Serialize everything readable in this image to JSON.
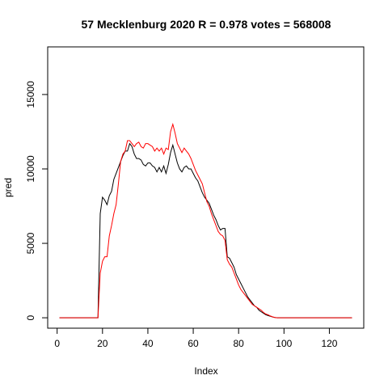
{
  "chart_data": {
    "type": "line",
    "title": "57 Mecklenburg 2020 R = 0.978 votes = 568008",
    "xlabel": "Index",
    "ylabel": "pred",
    "xlim": [
      1,
      130
    ],
    "ylim": [
      0,
      17500
    ],
    "x_ticks": [
      0,
      20,
      40,
      60,
      80,
      100,
      120
    ],
    "y_ticks": [
      0,
      5000,
      10000,
      15000
    ],
    "grid": false,
    "legend": "none",
    "series": [
      {
        "color": "#000000",
        "values": [
          0,
          0,
          0,
          0,
          0,
          0,
          0,
          0,
          0,
          0,
          0,
          0,
          0,
          0,
          0,
          0,
          0,
          0,
          7000,
          8100,
          7900,
          7600,
          8200,
          8500,
          9300,
          9700,
          10100,
          10500,
          10900,
          11200,
          11200,
          11700,
          11500,
          11000,
          10700,
          10700,
          10600,
          10300,
          10200,
          10400,
          10400,
          10200,
          10100,
          9800,
          10100,
          9800,
          10200,
          9700,
          10300,
          11100,
          11600,
          11000,
          10400,
          10000,
          9800,
          10100,
          10200,
          10000,
          10000,
          9700,
          9400,
          9200,
          8800,
          8400,
          8100,
          7900,
          7700,
          7300,
          6900,
          6600,
          6200,
          5900,
          6000,
          6000,
          4100,
          4000,
          3700,
          3400,
          2900,
          2600,
          2300,
          2000,
          1700,
          1400,
          1200,
          1000,
          800,
          700,
          500,
          400,
          300,
          200,
          150,
          100,
          50,
          20,
          0,
          0,
          0,
          0,
          0,
          0,
          0,
          0,
          0,
          0,
          0,
          0,
          0,
          0,
          0,
          0,
          0,
          0,
          0,
          0,
          0,
          0,
          0,
          0,
          0,
          0,
          0,
          0,
          0,
          0,
          0,
          0,
          0,
          0
        ]
      },
      {
        "color": "#ff0000",
        "values": [
          0,
          0,
          0,
          0,
          0,
          0,
          0,
          0,
          0,
          0,
          0,
          0,
          0,
          0,
          0,
          0,
          0,
          0,
          3000,
          3800,
          4100,
          4100,
          5500,
          6200,
          7000,
          7600,
          9000,
          10500,
          11000,
          11200,
          11900,
          11900,
          11700,
          11500,
          11700,
          11800,
          11500,
          11400,
          11700,
          11700,
          11600,
          11500,
          11200,
          11400,
          11200,
          11400,
          11000,
          11400,
          11300,
          12500,
          13000,
          12400,
          11700,
          11400,
          11100,
          11400,
          11200,
          11000,
          10700,
          10300,
          9900,
          9600,
          9300,
          9000,
          8400,
          7800,
          7500,
          7000,
          6600,
          6200,
          5800,
          5600,
          5500,
          5200,
          3900,
          3600,
          3400,
          3000,
          2600,
          2200,
          1900,
          1700,
          1500,
          1300,
          1100,
          900,
          800,
          700,
          600,
          500,
          350,
          250,
          200,
          120,
          60,
          20,
          0,
          0,
          0,
          0,
          0,
          0,
          0,
          0,
          0,
          0,
          0,
          0,
          0,
          0,
          0,
          0,
          0,
          0,
          0,
          0,
          0,
          0,
          0,
          0,
          0,
          0,
          0,
          0,
          0,
          0,
          0,
          0,
          0,
          0
        ]
      }
    ]
  }
}
